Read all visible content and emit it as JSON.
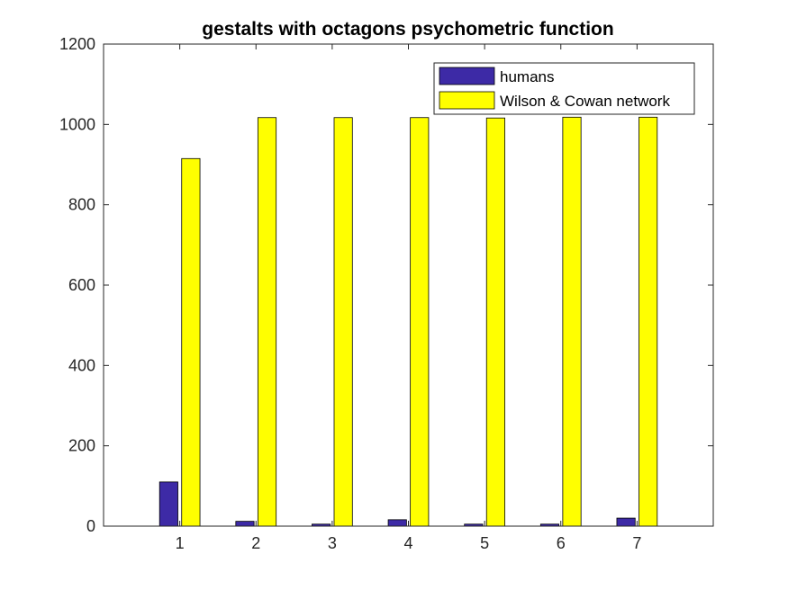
{
  "chart_data": {
    "type": "bar",
    "title": "gestalts with octagons psychometric function",
    "xlabel": "",
    "ylabel": "",
    "categories": [
      "1",
      "2",
      "3",
      "4",
      "5",
      "6",
      "7"
    ],
    "series": [
      {
        "name": "humans",
        "color": "#3d2aa6",
        "values": [
          110,
          12,
          5,
          16,
          5,
          5,
          20
        ]
      },
      {
        "name": "Wilson & Cowan network",
        "color": "#ffff00",
        "values": [
          915,
          1017,
          1017,
          1017,
          1016,
          1018,
          1018
        ]
      }
    ],
    "ylim": [
      0,
      1200
    ],
    "yticks": [
      0,
      200,
      400,
      600,
      800,
      1000,
      1200
    ],
    "xlim": [
      0,
      8
    ],
    "grid": false,
    "legend_position": "top-right"
  }
}
